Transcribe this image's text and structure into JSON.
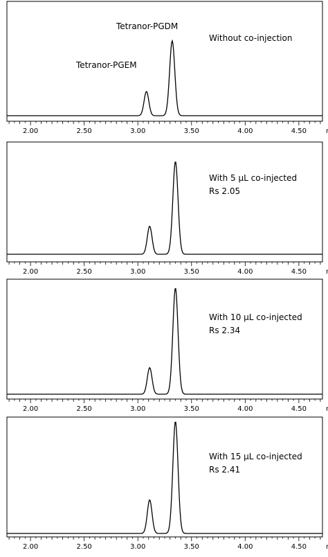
{
  "chart_data": [
    {
      "type": "line",
      "x_unit": "min",
      "xlim": [
        1.78,
        4.72
      ],
      "x_ticks": [
        "2.00",
        "2.50",
        "3.00",
        "3.50",
        "4.00",
        "4.50"
      ],
      "annotations": [
        "Tetranor-PGEM",
        "Tetranor-PGDM",
        "Without co-injection"
      ],
      "peaks": [
        {
          "label": "Tetranor-PGEM",
          "x": 3.08,
          "height": 0.22
        },
        {
          "label": "Tetranor-PGDM",
          "x": 3.32,
          "height": 0.68
        }
      ]
    },
    {
      "type": "line",
      "x_unit": "min",
      "xlim": [
        1.78,
        4.72
      ],
      "x_ticks": [
        "2.00",
        "2.50",
        "3.00",
        "3.50",
        "4.00",
        "4.50"
      ],
      "annotations": [
        "With 5 µL co-injected",
        "Rs 2.05"
      ],
      "peaks": [
        {
          "x": 3.11,
          "height": 0.26
        },
        {
          "x": 3.35,
          "height": 0.86
        }
      ]
    },
    {
      "type": "line",
      "x_unit": "min",
      "xlim": [
        1.78,
        4.72
      ],
      "x_ticks": [
        "2.00",
        "2.50",
        "3.00",
        "3.50",
        "4.00",
        "4.50"
      ],
      "annotations": [
        "With 10 µL co-injected",
        "Rs 2.34"
      ],
      "peaks": [
        {
          "x": 3.11,
          "height": 0.24
        },
        {
          "x": 3.35,
          "height": 0.96
        }
      ]
    },
    {
      "type": "line",
      "x_unit": "min",
      "xlim": [
        1.78,
        4.72
      ],
      "x_ticks": [
        "2.00",
        "2.50",
        "3.00",
        "3.50",
        "4.00",
        "4.50"
      ],
      "annotations": [
        "With 15 µL co-injected",
        "Rs 2.41"
      ],
      "peaks": [
        {
          "x": 3.11,
          "height": 0.3
        },
        {
          "x": 3.35,
          "height": 1.0
        }
      ]
    }
  ]
}
